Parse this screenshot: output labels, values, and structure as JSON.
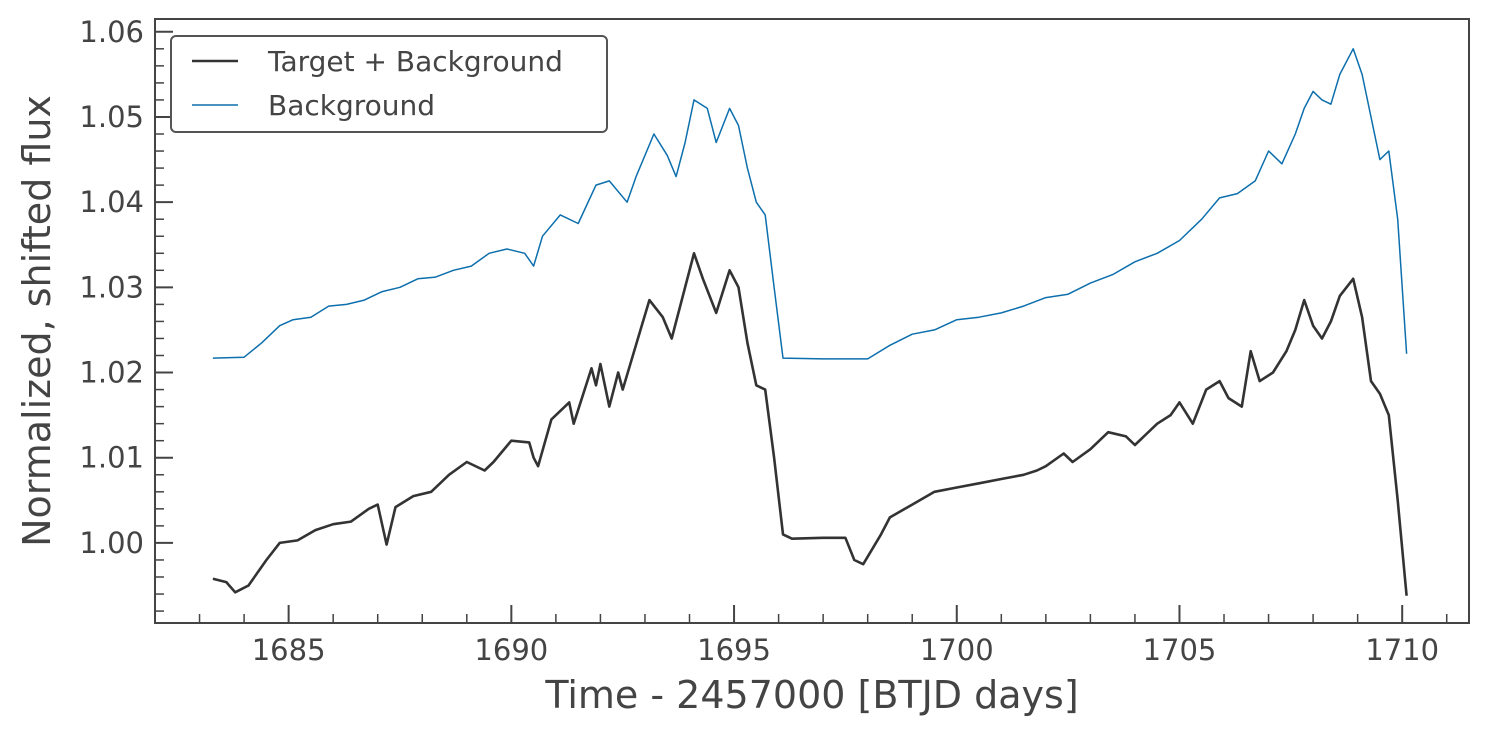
{
  "chart_data": {
    "type": "line",
    "title": "",
    "xlabel": "Time - 2457000 [BTJD days]",
    "ylabel": "Normalized, shifted flux",
    "xlim": [
      1682,
      1711.5
    ],
    "ylim": [
      0.9906,
      1.0615
    ],
    "x_ticks": [
      1685,
      1690,
      1695,
      1700,
      1705,
      1710
    ],
    "x_tick_labels": [
      "1685",
      "1690",
      "1695",
      "1700",
      "1705",
      "1710"
    ],
    "y_ticks": [
      1.0,
      1.01,
      1.02,
      1.03,
      1.04,
      1.05,
      1.06
    ],
    "y_tick_labels": [
      "1.00",
      "1.01",
      "1.02",
      "1.03",
      "1.04",
      "1.05",
      "1.06"
    ],
    "grid": false,
    "legend_position": "top-left",
    "series": [
      {
        "name": "Target + Background",
        "color": "#333333",
        "x": [
          1683.3,
          1683.6,
          1683.8,
          1684.1,
          1684.5,
          1684.8,
          1685.2,
          1685.6,
          1686.0,
          1686.4,
          1686.8,
          1687.0,
          1687.2,
          1687.4,
          1687.8,
          1688.2,
          1688.6,
          1689.0,
          1689.4,
          1689.6,
          1690.0,
          1690.4,
          1690.5,
          1690.6,
          1690.9,
          1691.3,
          1691.4,
          1691.8,
          1691.9,
          1692.0,
          1692.2,
          1692.4,
          1692.5,
          1692.9,
          1693.1,
          1693.4,
          1693.6,
          1693.9,
          1694.1,
          1694.3,
          1694.6,
          1694.9,
          1695.1,
          1695.3,
          1695.5,
          1695.7,
          1695.9,
          1696.1,
          1696.3,
          1697.0,
          1697.5,
          1697.7,
          1697.9,
          1698.3,
          1698.5,
          1699.0,
          1699.5,
          1700.0,
          1700.5,
          1701.0,
          1701.5,
          1701.8,
          1702.0,
          1702.4,
          1702.6,
          1703.0,
          1703.4,
          1703.8,
          1704.0,
          1704.5,
          1704.8,
          1705.0,
          1705.3,
          1705.6,
          1705.9,
          1706.1,
          1706.4,
          1706.6,
          1706.8,
          1707.1,
          1707.4,
          1707.6,
          1707.8,
          1708.0,
          1708.2,
          1708.4,
          1708.6,
          1708.9,
          1709.1,
          1709.3,
          1709.5,
          1709.7,
          1709.9,
          1710.1
        ],
        "values": [
          0.9958,
          0.9954,
          0.9942,
          0.995,
          0.998,
          1.0,
          1.0003,
          1.0015,
          1.0022,
          1.0025,
          1.004,
          1.0045,
          0.9998,
          1.0042,
          1.0055,
          1.006,
          1.008,
          1.0095,
          1.0085,
          1.0095,
          1.012,
          1.0118,
          1.01,
          1.009,
          1.0145,
          1.0165,
          1.014,
          1.0205,
          1.0185,
          1.021,
          1.016,
          1.02,
          1.018,
          1.025,
          1.0285,
          1.0265,
          1.024,
          1.03,
          1.034,
          1.031,
          1.027,
          1.032,
          1.03,
          1.0235,
          1.0185,
          1.018,
          1.01,
          1.001,
          1.0005,
          1.0006,
          1.0006,
          0.998,
          0.9975,
          1.001,
          1.003,
          1.0045,
          1.006,
          1.0065,
          1.007,
          1.0075,
          1.008,
          1.0085,
          1.009,
          1.0105,
          1.0095,
          1.011,
          1.013,
          1.0125,
          1.0115,
          1.014,
          1.015,
          1.0165,
          1.014,
          1.018,
          1.019,
          1.017,
          1.016,
          1.0225,
          1.019,
          1.02,
          1.0225,
          1.025,
          1.0285,
          1.0255,
          1.024,
          1.026,
          1.029,
          1.031,
          1.0265,
          1.019,
          1.0175,
          1.015,
          1.005,
          0.9938
        ]
      },
      {
        "name": "Background",
        "color": "#0d6fad",
        "x": [
          1683.3,
          1684.0,
          1684.4,
          1684.8,
          1685.1,
          1685.5,
          1685.9,
          1686.3,
          1686.7,
          1687.1,
          1687.5,
          1687.9,
          1688.3,
          1688.7,
          1689.1,
          1689.5,
          1689.9,
          1690.3,
          1690.5,
          1690.7,
          1691.1,
          1691.5,
          1691.9,
          1692.2,
          1692.6,
          1692.8,
          1693.2,
          1693.5,
          1693.7,
          1693.9,
          1694.1,
          1694.4,
          1694.6,
          1694.9,
          1695.1,
          1695.3,
          1695.5,
          1695.7,
          1695.9,
          1696.1,
          1697.0,
          1698.0,
          1698.5,
          1699.0,
          1699.5,
          1700.0,
          1700.5,
          1701.0,
          1701.5,
          1702.0,
          1702.5,
          1703.0,
          1703.5,
          1704.0,
          1704.5,
          1705.0,
          1705.5,
          1705.9,
          1706.3,
          1706.7,
          1707.0,
          1707.3,
          1707.6,
          1707.8,
          1708.0,
          1708.2,
          1708.4,
          1708.6,
          1708.9,
          1709.1,
          1709.3,
          1709.5,
          1709.7,
          1709.9,
          1710.1
        ],
        "values": [
          1.0217,
          1.0218,
          1.0235,
          1.0255,
          1.0262,
          1.0265,
          1.0278,
          1.028,
          1.0285,
          1.0295,
          1.03,
          1.031,
          1.0312,
          1.032,
          1.0325,
          1.034,
          1.0345,
          1.034,
          1.0325,
          1.036,
          1.0385,
          1.0375,
          1.042,
          1.0425,
          1.04,
          1.043,
          1.048,
          1.0455,
          1.043,
          1.047,
          1.052,
          1.051,
          1.047,
          1.051,
          1.049,
          1.044,
          1.04,
          1.0385,
          1.03,
          1.0217,
          1.0216,
          1.0216,
          1.0232,
          1.0245,
          1.025,
          1.0262,
          1.0265,
          1.027,
          1.0278,
          1.0288,
          1.0292,
          1.0305,
          1.0315,
          1.033,
          1.034,
          1.0355,
          1.038,
          1.0405,
          1.041,
          1.0425,
          1.046,
          1.0445,
          1.048,
          1.051,
          1.053,
          1.052,
          1.0515,
          1.055,
          1.058,
          1.055,
          1.05,
          1.045,
          1.046,
          1.038,
          1.0222
        ]
      }
    ]
  }
}
